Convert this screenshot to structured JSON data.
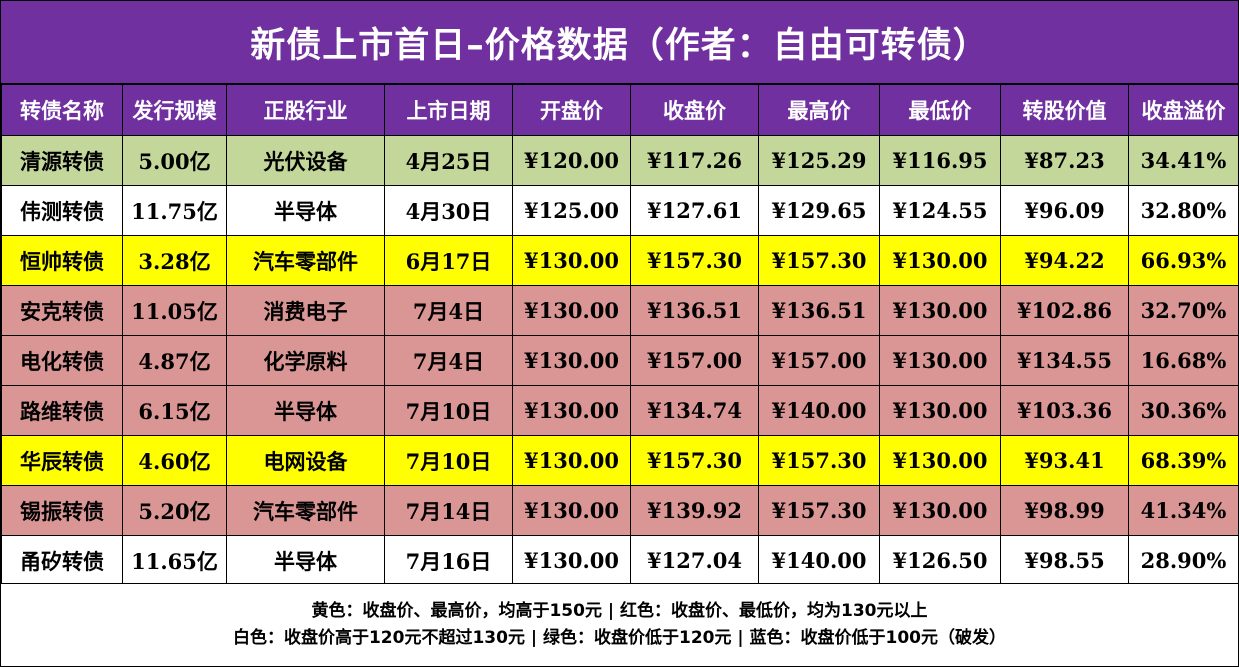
{
  "title": "新债上市首日–价格数据（作者：自由可转债）",
  "headers": [
    "转债名称",
    "发行规模",
    "正股行业",
    "上市日期",
    "开盘价",
    "收盘价",
    "最高价",
    "最低价",
    "转股价值",
    "收盘溢价"
  ],
  "rows": [
    {
      "color": "green",
      "cells": [
        "清源转债",
        "5.00亿",
        "光伏设备",
        "4月25日",
        "¥120.00",
        "¥117.26",
        "¥125.29",
        "¥116.95",
        "¥87.23",
        "34.41%"
      ]
    },
    {
      "color": "white",
      "cells": [
        "伟测转债",
        "11.75亿",
        "半导体",
        "4月30日",
        "¥125.00",
        "¥127.61",
        "¥129.65",
        "¥124.55",
        "¥96.09",
        "32.80%"
      ]
    },
    {
      "color": "yellow",
      "cells": [
        "恒帅转债",
        "3.28亿",
        "汽车零部件",
        "6月17日",
        "¥130.00",
        "¥157.30",
        "¥157.30",
        "¥130.00",
        "¥94.22",
        "66.93%"
      ]
    },
    {
      "color": "red",
      "cells": [
        "安克转债",
        "11.05亿",
        "消费电子",
        "7月4日",
        "¥130.00",
        "¥136.51",
        "¥136.51",
        "¥130.00",
        "¥102.86",
        "32.70%"
      ]
    },
    {
      "color": "red",
      "cells": [
        "电化转债",
        "4.87亿",
        "化学原料",
        "7月4日",
        "¥130.00",
        "¥157.00",
        "¥157.00",
        "¥130.00",
        "¥134.55",
        "16.68%"
      ]
    },
    {
      "color": "red",
      "cells": [
        "路维转债",
        "6.15亿",
        "半导体",
        "7月10日",
        "¥130.00",
        "¥134.74",
        "¥140.00",
        "¥130.00",
        "¥103.36",
        "30.36%"
      ]
    },
    {
      "color": "yellow",
      "cells": [
        "华辰转债",
        "4.60亿",
        "电网设备",
        "7月10日",
        "¥130.00",
        "¥157.30",
        "¥157.30",
        "¥130.00",
        "¥93.41",
        "68.39%"
      ]
    },
    {
      "color": "red",
      "cells": [
        "锡振转债",
        "5.20亿",
        "汽车零部件",
        "7月14日",
        "¥130.00",
        "¥139.92",
        "¥157.30",
        "¥130.00",
        "¥98.99",
        "41.34%"
      ]
    },
    {
      "color": "white",
      "cells": [
        "甬矽转债",
        "11.65亿",
        "半导体",
        "7月16日",
        "¥130.00",
        "¥127.04",
        "¥140.00",
        "¥126.50",
        "¥98.55",
        "28.90%"
      ]
    }
  ],
  "footer": {
    "line1": "黄色：收盘价、最高价，均高于150元 | 红色：收盘价、最低价，均为130元以上",
    "line2": "白色：收盘价高于120元不超过130元 | 绿色：收盘价低于120元 | 蓝色：收盘价低于100元（破发）"
  },
  "colors": {
    "header_purple": "#7030a0",
    "green": "#c4d79b",
    "white": "#ffffff",
    "yellow": "#ffff00",
    "red": "#da9694"
  }
}
